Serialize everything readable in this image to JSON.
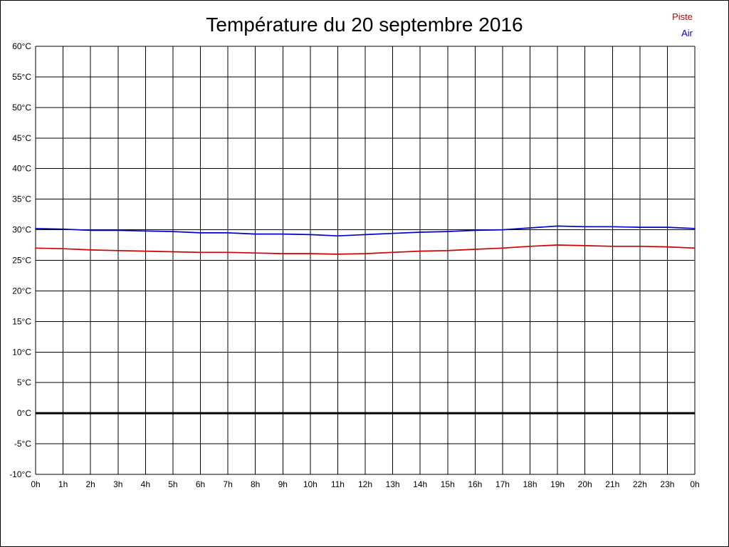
{
  "title": "Température du 20 septembre 2016",
  "legend": [
    {
      "label": "Piste",
      "color": "#cc0000"
    },
    {
      "label": "Air",
      "color": "#0000cc"
    }
  ],
  "chart_data": {
    "type": "line",
    "title": "Température du 20 septembre 2016",
    "xlabel": "",
    "ylabel": "",
    "ylim": [
      -10,
      60
    ],
    "y_tick_step": 5,
    "y_ticks": [
      60,
      55,
      50,
      45,
      40,
      35,
      30,
      25,
      20,
      15,
      10,
      5,
      0,
      -5,
      -10
    ],
    "y_tick_suffix": "°C",
    "x_labels": [
      "0h",
      "1h",
      "2h",
      "3h",
      "4h",
      "5h",
      "6h",
      "7h",
      "8h",
      "9h",
      "10h",
      "11h",
      "12h",
      "13h",
      "14h",
      "15h",
      "16h",
      "17h",
      "18h",
      "19h",
      "20h",
      "21h",
      "22h",
      "23h",
      "0h"
    ],
    "grid": true,
    "grid_color": "#000000",
    "zero_line": {
      "value": 0,
      "color": "#000000",
      "width": 3
    },
    "legend_position": "top-right",
    "series": [
      {
        "name": "Air",
        "color": "#0000cc",
        "values": [
          30.2,
          30.1,
          29.9,
          29.9,
          29.8,
          29.7,
          29.5,
          29.5,
          29.3,
          29.3,
          29.2,
          29.0,
          29.2,
          29.4,
          29.6,
          29.7,
          29.9,
          30.0,
          30.3,
          30.6,
          30.5,
          30.5,
          30.4,
          30.4,
          30.2
        ]
      },
      {
        "name": "Piste",
        "color": "#cc0000",
        "values": [
          27.0,
          26.9,
          26.7,
          26.6,
          26.5,
          26.4,
          26.3,
          26.3,
          26.2,
          26.1,
          26.1,
          26.0,
          26.1,
          26.3,
          26.5,
          26.6,
          26.8,
          27.0,
          27.3,
          27.5,
          27.4,
          27.3,
          27.3,
          27.2,
          27.0
        ]
      }
    ]
  }
}
